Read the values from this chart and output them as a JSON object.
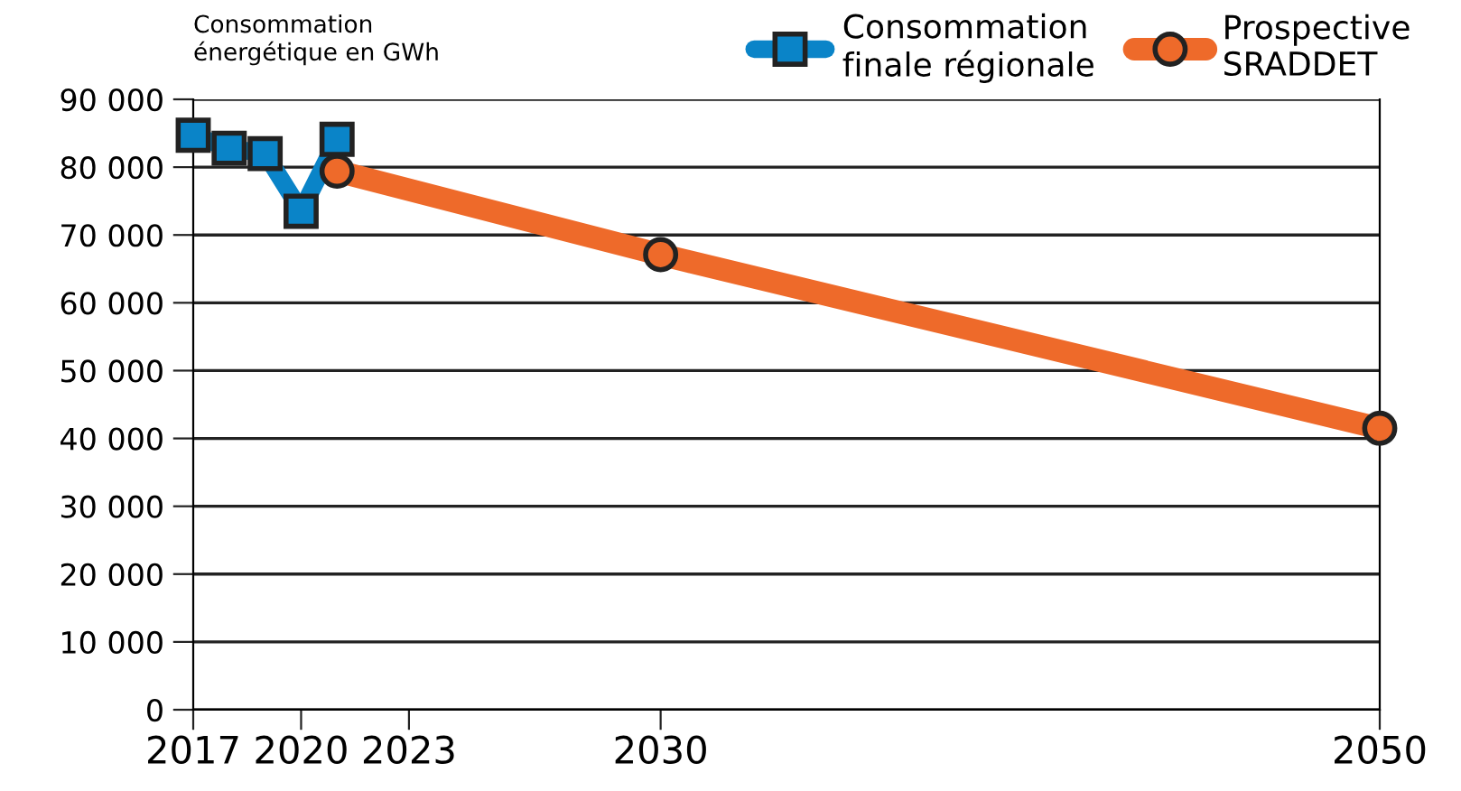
{
  "chart_data": {
    "type": "line",
    "ylabel": "Consommation\nénergétique en GWh",
    "series": [
      {
        "name": "Consommation\nfinale régionale",
        "color": "#0a84c8",
        "marker": "square",
        "x": [
          2017,
          2018,
          2019,
          2020,
          2021
        ],
        "values": [
          84700,
          82800,
          82000,
          73500,
          84100
        ]
      },
      {
        "name": "Prospective\nSRADDET",
        "color": "#ee6a2a",
        "marker": "circle",
        "x": [
          2021,
          2030,
          2050
        ],
        "values": [
          79400,
          67100,
          41500
        ]
      }
    ],
    "xlim": [
      2017,
      2050
    ],
    "xticks": [
      2017,
      2020,
      2023,
      2030,
      2050
    ],
    "ylim": [
      0,
      90000
    ],
    "yticks": [
      {
        "value": 0,
        "label": "0"
      },
      {
        "value": 10000,
        "label": "10 000"
      },
      {
        "value": 20000,
        "label": "20 000"
      },
      {
        "value": 30000,
        "label": "30 000"
      },
      {
        "value": 40000,
        "label": "40 000"
      },
      {
        "value": 50000,
        "label": "50 000"
      },
      {
        "value": 60000,
        "label": "60 000"
      },
      {
        "value": 70000,
        "label": "70 000"
      },
      {
        "value": 80000,
        "label": "80 000"
      },
      {
        "value": 90000,
        "label": "90 000"
      }
    ],
    "grid": "y",
    "legend": "top right"
  }
}
